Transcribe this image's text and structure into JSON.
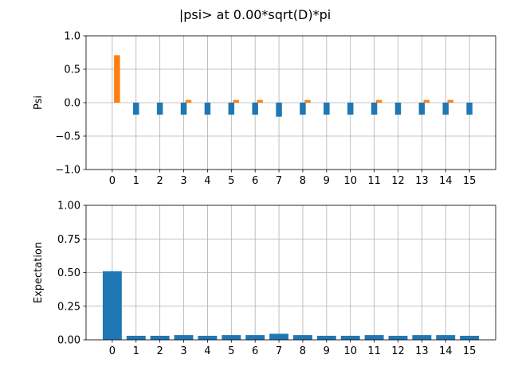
{
  "figure": {
    "title": "|psi> at 0.00*sqrt(D)*pi"
  },
  "colors": {
    "real": "#1f77b4",
    "imag": "#ff7f0e",
    "grid": "#b0b0b0",
    "axis": "#000000"
  },
  "chart_data": [
    {
      "type": "bar",
      "title": "",
      "xlabel": "",
      "ylabel": "Psi",
      "ylim": [
        -1.0,
        1.0
      ],
      "yticks": [
        -1.0,
        -0.5,
        0.0,
        0.5,
        1.0
      ],
      "ytick_labels": [
        "−1.0",
        "−0.5",
        "0.0",
        "0.5",
        "1.0"
      ],
      "grid": true,
      "categories": [
        "0",
        "1",
        "2",
        "3",
        "4",
        "5",
        "6",
        "7",
        "8",
        "9",
        "10",
        "11",
        "12",
        "13",
        "14",
        "15"
      ],
      "series": [
        {
          "color": "#1f77b4",
          "values": [
            0.0,
            -0.18,
            -0.18,
            -0.18,
            -0.18,
            -0.18,
            -0.18,
            -0.21,
            -0.18,
            -0.18,
            -0.18,
            -0.18,
            -0.18,
            -0.18,
            -0.18,
            -0.18
          ]
        },
        {
          "color": "#ff7f0e",
          "values": [
            0.71,
            0.0,
            0.0,
            0.04,
            0.0,
            0.04,
            0.04,
            0.0,
            0.04,
            0.0,
            0.0,
            0.04,
            0.0,
            0.04,
            0.04,
            0.0
          ]
        }
      ]
    },
    {
      "type": "bar",
      "title": "",
      "xlabel": "",
      "ylabel": "Expectation",
      "ylim": [
        0.0,
        1.0
      ],
      "yticks": [
        0.0,
        0.25,
        0.5,
        0.75,
        1.0
      ],
      "ytick_labels": [
        "0.00",
        "0.25",
        "0.50",
        "0.75",
        "1.00"
      ],
      "grid": true,
      "categories": [
        "0",
        "1",
        "2",
        "3",
        "4",
        "5",
        "6",
        "7",
        "8",
        "9",
        "10",
        "11",
        "12",
        "13",
        "14",
        "15"
      ],
      "series": [
        {
          "color": "#1f77b4",
          "values": [
            0.51,
            0.03,
            0.03,
            0.035,
            0.03,
            0.035,
            0.035,
            0.045,
            0.035,
            0.03,
            0.03,
            0.035,
            0.03,
            0.035,
            0.035,
            0.03
          ]
        }
      ]
    }
  ]
}
